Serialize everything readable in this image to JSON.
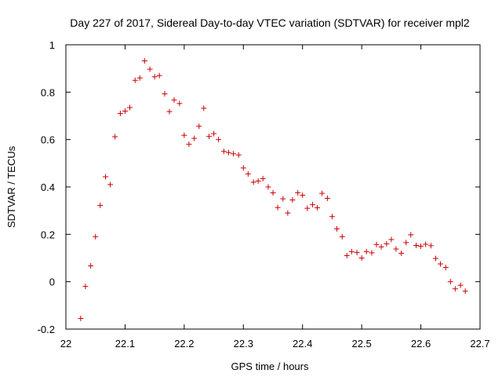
{
  "chart_data": {
    "type": "scatter",
    "title": "Day 227 of 2017, Sidereal Day-to-day VTEC variation (SDTVAR) for receiver mpl2",
    "xlabel": "GPS time / hours",
    "ylabel": "SDTVAR / TECUs",
    "xlim": [
      22,
      22.7
    ],
    "ylim": [
      -0.2,
      1
    ],
    "xticks": [
      "22",
      "22.1",
      "22.2",
      "22.3",
      "22.4",
      "22.5",
      "22.6",
      "22.7"
    ],
    "yticks": [
      "-0.2",
      "0",
      "0.2",
      "0.4",
      "0.6",
      "0.8",
      "1"
    ],
    "marker": "+",
    "marker_color": "#cc0000",
    "grid": false,
    "series": [
      {
        "name": "SDTVAR",
        "x": [
          22.025,
          22.033,
          22.042,
          22.05,
          22.058,
          22.067,
          22.075,
          22.083,
          22.092,
          22.1,
          22.108,
          22.117,
          22.125,
          22.133,
          22.142,
          22.15,
          22.158,
          22.167,
          22.175,
          22.183,
          22.192,
          22.2,
          22.208,
          22.217,
          22.225,
          22.233,
          22.242,
          22.25,
          22.258,
          22.267,
          22.275,
          22.283,
          22.292,
          22.3,
          22.308,
          22.317,
          22.325,
          22.333,
          22.342,
          22.35,
          22.358,
          22.367,
          22.375,
          22.383,
          22.392,
          22.4,
          22.408,
          22.417,
          22.425,
          22.433,
          22.442,
          22.45,
          22.458,
          22.467,
          22.475,
          22.483,
          22.492,
          22.5,
          22.508,
          22.517,
          22.525,
          22.533,
          22.542,
          22.55,
          22.558,
          22.567,
          22.575,
          22.583,
          22.592,
          22.6,
          22.608,
          22.617,
          22.625,
          22.633,
          22.642,
          22.65,
          22.658,
          22.667,
          22.675
        ],
        "y": [
          -0.155,
          -0.02,
          0.067,
          0.19,
          0.322,
          0.443,
          0.41,
          0.612,
          0.71,
          0.72,
          0.735,
          0.85,
          0.86,
          0.932,
          0.897,
          0.865,
          0.87,
          0.793,
          0.718,
          0.767,
          0.752,
          0.618,
          0.58,
          0.605,
          0.656,
          0.732,
          0.613,
          0.625,
          0.6,
          0.55,
          0.545,
          0.54,
          0.535,
          0.48,
          0.455,
          0.42,
          0.425,
          0.435,
          0.4,
          0.375,
          0.313,
          0.35,
          0.29,
          0.345,
          0.375,
          0.365,
          0.31,
          0.325,
          0.312,
          0.373,
          0.352,
          0.275,
          0.223,
          0.19,
          0.11,
          0.127,
          0.123,
          0.1,
          0.127,
          0.122,
          0.157,
          0.147,
          0.16,
          0.178,
          0.138,
          0.12,
          0.165,
          0.198,
          0.153,
          0.15,
          0.158,
          0.152,
          0.098,
          0.075,
          0.06,
          0.0,
          -0.03,
          -0.015,
          -0.04
        ]
      }
    ]
  }
}
